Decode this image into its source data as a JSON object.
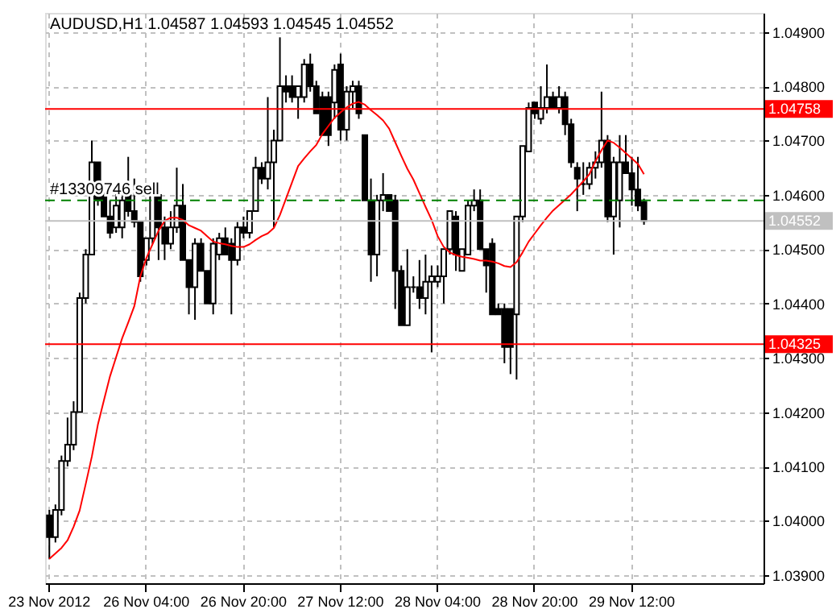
{
  "chart_data": {
    "type": "candlestick",
    "title": "AUDUSD,H1  1.04587 1.04593 1.04545 1.04552",
    "categories": [
      "23 Nov 2012",
      null,
      null,
      null,
      null,
      null,
      null,
      null,
      null,
      null,
      null,
      null,
      null,
      null,
      null,
      null,
      "26 Nov 04:00",
      null,
      null,
      null,
      null,
      null,
      null,
      null,
      null,
      null,
      null,
      null,
      null,
      null,
      null,
      null,
      "26 Nov 20:00",
      null,
      null,
      null,
      null,
      null,
      null,
      null,
      null,
      null,
      null,
      null,
      null,
      null,
      null,
      null,
      "27 Nov 12:00",
      null,
      null,
      null,
      null,
      null,
      null,
      null,
      null,
      null,
      null,
      null,
      null,
      null,
      null,
      null,
      "28 Nov 04:00",
      null,
      null,
      null,
      null,
      null,
      null,
      null,
      null,
      null,
      null,
      null,
      null,
      null,
      null,
      null,
      "28 Nov 20:00",
      null,
      null,
      null,
      null,
      null,
      null,
      null,
      null,
      null,
      null,
      null,
      null,
      null,
      null,
      null,
      "29 Nov 12:00",
      null,
      null,
      null,
      null,
      null,
      null,
      null,
      null,
      null,
      null,
      null,
      null,
      null,
      null,
      null,
      null,
      null,
      null,
      null,
      null,
      null
    ],
    "ohlc": [
      [
        1.0401,
        1.0402,
        1.0393,
        1.0397
      ],
      [
        1.0397,
        1.0403,
        1.0396,
        1.0402
      ],
      [
        1.0402,
        1.0412,
        1.0401,
        1.0411
      ],
      [
        1.0411,
        1.0419,
        1.041,
        1.0414
      ],
      [
        1.0414,
        1.0422,
        1.0413,
        1.042
      ],
      [
        1.042,
        1.0442,
        1.042,
        1.0441
      ],
      [
        1.0441,
        1.045,
        1.044,
        1.0449
      ],
      [
        1.0449,
        1.047,
        1.0449,
        1.0466
      ],
      [
        1.0466,
        1.0466,
        1.0458,
        1.0459
      ],
      [
        1.046,
        1.0462,
        1.0456,
        1.0456
      ],
      [
        1.0456,
        1.0459,
        1.0452,
        1.0453
      ],
      [
        1.0454,
        1.0461,
        1.0453,
        1.0458
      ],
      [
        1.0454,
        1.0462,
        1.0452,
        1.0459
      ],
      [
        1.046,
        1.0467,
        1.0456,
        1.0457
      ],
      [
        1.0457,
        1.0463,
        1.0454,
        1.0455
      ],
      [
        1.0455,
        1.0455,
        1.0444,
        1.0445
      ],
      [
        1.0448,
        1.0452,
        1.0447,
        1.0452
      ],
      [
        1.0452,
        1.0462,
        1.0451,
        1.046
      ],
      [
        1.046,
        1.0461,
        1.0448,
        1.0454
      ],
      [
        1.0454,
        1.0456,
        1.0448,
        1.0451
      ],
      [
        1.0451,
        1.0457,
        1.045,
        1.0454
      ],
      [
        1.0454,
        1.0465,
        1.0453,
        1.0458
      ],
      [
        1.0458,
        1.0462,
        1.0448,
        1.0448
      ],
      [
        1.0448,
        1.0448,
        1.0438,
        1.0443
      ],
      [
        1.0443,
        1.0452,
        1.0437,
        1.0451
      ],
      [
        1.0451,
        1.0452,
        1.0446,
        1.0446
      ],
      [
        1.0446,
        1.0446,
        1.044,
        1.044
      ],
      [
        1.044,
        1.0452,
        1.0438,
        1.0451
      ],
      [
        1.0449,
        1.0453,
        1.0448,
        1.0452
      ],
      [
        1.0452,
        1.0454,
        1.0449,
        1.0449
      ],
      [
        1.0451,
        1.0452,
        1.0438,
        1.0448
      ],
      [
        1.0448,
        1.0455,
        1.0447,
        1.0454
      ],
      [
        1.0454,
        1.0456,
        1.0452,
        1.0453
      ],
      [
        1.0453,
        1.0457,
        1.0452,
        1.0457
      ],
      [
        1.0457,
        1.0467,
        1.0457,
        1.0465
      ],
      [
        1.0465,
        1.0466,
        1.0462,
        1.0463
      ],
      [
        1.0463,
        1.0478,
        1.0461,
        1.0466
      ],
      [
        1.0466,
        1.0472,
        1.0454,
        1.047
      ],
      [
        1.047,
        1.0489,
        1.047,
        1.048
      ],
      [
        1.048,
        1.0482,
        1.0477,
        1.0479
      ],
      [
        1.048,
        1.0482,
        1.0477,
        1.0478
      ],
      [
        1.0478,
        1.048,
        1.0474,
        1.048
      ],
      [
        1.0478,
        1.0485,
        1.0477,
        1.0484
      ],
      [
        1.0484,
        1.0486,
        1.0479,
        1.048
      ],
      [
        1.048,
        1.0481,
        1.0475,
        1.0475
      ],
      [
        1.0478,
        1.0479,
        1.0471,
        1.0471
      ],
      [
        1.0478,
        1.0479,
        1.0469,
        1.0471
      ],
      [
        1.0477,
        1.0484,
        1.0474,
        1.0483
      ],
      [
        1.0484,
        1.0486,
        1.047,
        1.0472
      ],
      [
        1.0472,
        1.048,
        1.047,
        1.0479
      ],
      [
        1.0479,
        1.0481,
        1.0476,
        1.048
      ],
      [
        1.048,
        1.0481,
        1.0474,
        1.0475
      ],
      [
        1.0471,
        1.0471,
        1.0459,
        1.0459
      ],
      [
        1.0459,
        1.0463,
        1.0444,
        1.0449
      ],
      [
        1.0449,
        1.046,
        1.0445,
        1.0459
      ],
      [
        1.0459,
        1.0464,
        1.0457,
        1.046
      ],
      [
        1.046,
        1.046,
        1.0457,
        1.0457
      ],
      [
        1.0459,
        1.046,
        1.0439,
        1.0446
      ],
      [
        1.0446,
        1.0447,
        1.0436,
        1.0436
      ],
      [
        1.0436,
        1.045,
        1.0436,
        1.0443
      ],
      [
        1.0443,
        1.0445,
        1.0442,
        1.0443
      ],
      [
        1.0443,
        1.0448,
        1.0439,
        1.0441
      ],
      [
        1.0441,
        1.0449,
        1.0438,
        1.0444
      ],
      [
        1.0444,
        1.0447,
        1.0431,
        1.0445
      ],
      [
        1.0444,
        1.0447,
        1.0443,
        1.0445
      ],
      [
        1.0445,
        1.045,
        1.044,
        1.045
      ],
      [
        1.045,
        1.0457,
        1.0449,
        1.0457
      ],
      [
        1.0456,
        1.0457,
        1.0446,
        1.0449
      ],
      [
        1.0446,
        1.045,
        1.0446,
        1.045
      ],
      [
        1.0449,
        1.0459,
        1.0449,
        1.0458
      ],
      [
        1.0458,
        1.0461,
        1.0457,
        1.0459
      ],
      [
        1.0459,
        1.0461,
        1.045,
        1.045
      ],
      [
        1.045,
        1.045,
        1.0442,
        1.0447
      ],
      [
        1.0451,
        1.0452,
        1.0438,
        1.0438
      ],
      [
        1.0439,
        1.044,
        1.0438,
        1.0438
      ],
      [
        1.0439,
        1.044,
        1.0429,
        1.0432
      ],
      [
        1.0439,
        1.0439,
        1.0427,
        1.0432
      ],
      [
        1.0438,
        1.0456,
        1.0426,
        1.0456
      ],
      [
        1.0456,
        1.0469,
        1.0455,
        1.0469
      ],
      [
        1.0468,
        1.0477,
        1.0468,
        1.0476
      ],
      [
        1.0477,
        1.0477,
        1.0474,
        1.0475
      ],
      [
        1.0474,
        1.048,
        1.0473,
        1.0476
      ],
      [
        1.0476,
        1.0484,
        1.0475,
        1.0478
      ],
      [
        1.0478,
        1.0479,
        1.0476,
        1.0476
      ],
      [
        1.0476,
        1.048,
        1.0475,
        1.0478
      ],
      [
        1.0478,
        1.0479,
        1.0471,
        1.0473
      ],
      [
        1.0473,
        1.0474,
        1.0465,
        1.0466
      ],
      [
        1.0465,
        1.0466,
        1.0457,
        1.0463
      ],
      [
        1.0462,
        1.0466,
        1.046,
        1.0462
      ],
      [
        1.0462,
        1.0466,
        1.0461,
        1.0465
      ],
      [
        1.0465,
        1.0468,
        1.0463,
        1.0466
      ],
      [
        1.0466,
        1.0479,
        1.0465,
        1.047
      ],
      [
        1.047,
        1.0471,
        1.0455,
        1.0456
      ],
      [
        1.0456,
        1.0467,
        1.0449,
        1.0466
      ],
      [
        1.0459,
        1.0471,
        1.0454,
        1.0466
      ],
      [
        1.0466,
        1.0471,
        1.0464,
        1.0464
      ],
      [
        1.0464,
        1.0467,
        1.0458,
        1.0461
      ],
      [
        1.0461,
        1.0467,
        1.0457,
        1.0458
      ],
      [
        1.04587,
        1.04593,
        1.04545,
        1.04552
      ],
      null,
      null,
      null,
      null,
      null,
      null,
      null,
      null,
      null,
      null,
      null,
      null,
      null,
      null,
      null,
      null,
      null,
      null,
      null
    ],
    "series": [
      {
        "type": "line",
        "color": "#ff0000",
        "values": [
          1.0393,
          1.0394,
          1.0395,
          1.03964,
          1.03989,
          1.04019,
          1.04068,
          1.04118,
          1.04177,
          1.04222,
          1.04266,
          1.04301,
          1.04336,
          1.04365,
          1.04395,
          1.0445,
          1.04484,
          1.04509,
          1.04534,
          1.04552,
          1.04558,
          1.04558,
          1.04554,
          1.04544,
          1.04539,
          1.04534,
          1.04524,
          1.04514,
          1.04511,
          1.04509,
          1.04506,
          1.04504,
          1.04504,
          1.04509,
          1.04517,
          1.04524,
          1.04529,
          1.04539,
          1.04563,
          1.04593,
          1.04623,
          1.04653,
          1.04667,
          1.0468,
          1.04692,
          1.04712,
          1.04727,
          1.04742,
          1.04752,
          1.04761,
          1.04768,
          1.04771,
          1.04766,
          1.04756,
          1.04747,
          1.04737,
          1.04722,
          1.04697,
          1.04672,
          1.04648,
          1.04628,
          1.04603,
          1.04578,
          1.04554,
          1.04524,
          1.04504,
          1.04494,
          1.04489,
          1.04486,
          1.04484,
          1.04482,
          1.04479,
          1.04479,
          1.04477,
          1.04474,
          1.04469,
          1.04467,
          1.04476,
          1.04494,
          1.04514,
          1.04529,
          1.04544,
          1.04558,
          1.04571,
          1.04581,
          1.04591,
          1.04601,
          1.04613,
          1.04625,
          1.04638,
          1.04662,
          1.04682,
          1.047,
          1.04696,
          1.04687,
          1.04677,
          1.04667,
          1.04657,
          1.04638,
          null,
          null,
          null,
          null,
          null,
          null,
          null,
          null,
          null,
          null,
          null,
          null,
          null,
          null,
          null,
          null,
          null,
          null,
          null
        ]
      }
    ],
    "ylim": [
      1.03885,
      1.04935
    ],
    "yticks": [
      {
        "value": 1.039,
        "label": "1.03900"
      },
      {
        "value": 1.04,
        "label": "1.04000"
      },
      {
        "value": 1.041,
        "label": "1.04100"
      },
      {
        "value": 1.042,
        "label": "1.04200"
      },
      {
        "value": 1.043,
        "label": "1.04300"
      },
      {
        "value": 1.044,
        "label": "1.04400"
      },
      {
        "value": 1.045,
        "label": "1.04500"
      },
      {
        "value": 1.046,
        "label": "1.04600"
      },
      {
        "value": 1.047,
        "label": "1.04700"
      },
      {
        "value": 1.048,
        "label": "1.04800"
      },
      {
        "value": 1.049,
        "label": "1.04900"
      }
    ],
    "ref_lines": [
      {
        "axis": "y",
        "value": 1.04758,
        "label": "1.04758",
        "color": "#ff0000"
      },
      {
        "axis": "y",
        "value": 1.04325,
        "label": "1.04325",
        "color": "#ff0000"
      },
      {
        "axis": "y",
        "value": 1.04552,
        "label": "1.04552",
        "color": "#c0c0c0"
      },
      {
        "axis": "y",
        "value": 1.0459,
        "label": "#13309746 sell",
        "color": "#008000",
        "line_style": "dashed"
      }
    ],
    "grid": true
  }
}
